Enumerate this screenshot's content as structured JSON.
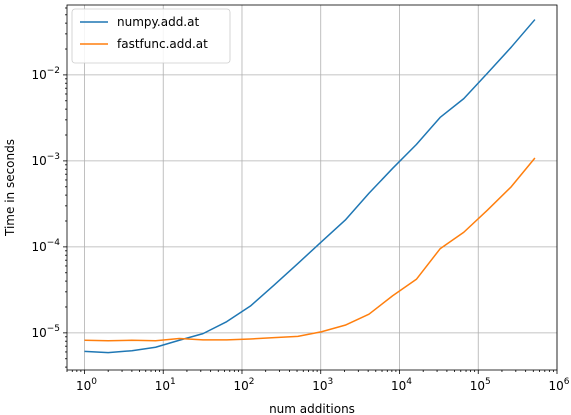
{
  "chart_data": {
    "type": "line",
    "scale": {
      "x": "log",
      "y": "log"
    },
    "xlim": [
      0.6,
      1000000
    ],
    "ylim": [
      3.7e-06,
      0.065
    ],
    "xlabel": "num additions",
    "ylabel": "Time in seconds",
    "grid": true,
    "legend_position": "upper-left",
    "x_ticks": [
      {
        "value": 1,
        "base": "10",
        "exp": "0"
      },
      {
        "value": 10,
        "base": "10",
        "exp": "1"
      },
      {
        "value": 100,
        "base": "10",
        "exp": "2"
      },
      {
        "value": 1000,
        "base": "10",
        "exp": "3"
      },
      {
        "value": 10000,
        "base": "10",
        "exp": "4"
      },
      {
        "value": 100000,
        "base": "10",
        "exp": "5"
      },
      {
        "value": 1000000,
        "base": "10",
        "exp": "6"
      }
    ],
    "y_ticks": [
      {
        "value": 1e-05,
        "base": "10",
        "exp": "−5"
      },
      {
        "value": 0.0001,
        "base": "10",
        "exp": "−4"
      },
      {
        "value": 0.001,
        "base": "10",
        "exp": "−3"
      },
      {
        "value": 0.01,
        "base": "10",
        "exp": "−2"
      }
    ],
    "x": [
      1,
      2,
      4,
      8,
      16,
      32,
      64,
      128,
      256,
      512,
      1024,
      2048,
      4096,
      8192,
      16384,
      32768,
      65536,
      131072,
      262144,
      524288
    ],
    "series": [
      {
        "name": "numpy.add.at",
        "color": "#1f77b4",
        "values": [
          6.1e-06,
          5.9e-06,
          6.2e-06,
          6.8e-06,
          8.2e-06,
          9.8e-06,
          1.35e-05,
          2.05e-05,
          3.6e-05,
          6.4e-05,
          0.000115,
          0.000205,
          0.00042,
          0.00082,
          0.00155,
          0.0032,
          0.0053,
          0.0105,
          0.021,
          0.044
        ]
      },
      {
        "name": "fastfunc.add.at",
        "color": "#ff7f0e",
        "values": [
          8.2e-06,
          8.1e-06,
          8.2e-06,
          8.1e-06,
          8.6e-06,
          8.3e-06,
          8.3e-06,
          8.5e-06,
          8.8e-06,
          9.1e-06,
          1.03e-05,
          1.23e-05,
          1.65e-05,
          2.7e-05,
          4.2e-05,
          9.5e-05,
          0.000148,
          0.000268,
          0.0005,
          0.00108
        ]
      }
    ]
  }
}
